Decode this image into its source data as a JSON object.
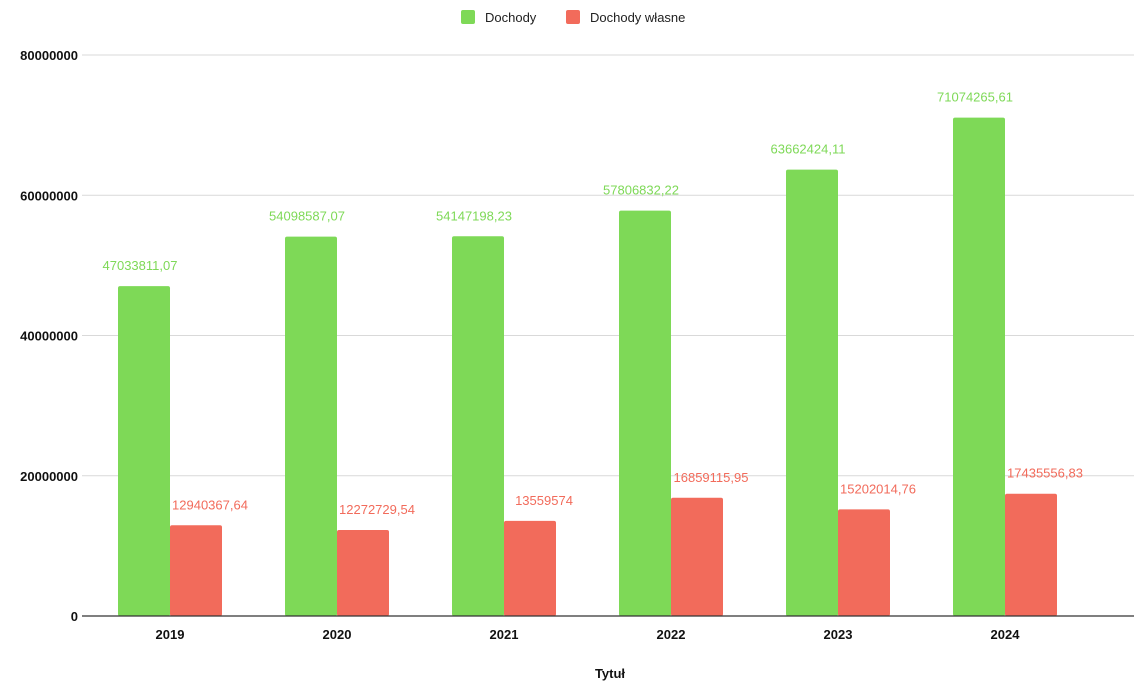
{
  "chart_data": {
    "type": "bar",
    "title": "",
    "xlabel": "Tytuł",
    "ylabel": "",
    "ylim": [
      0,
      80000000
    ],
    "yticks": [
      "0",
      "20000000",
      "40000000",
      "60000000",
      "80000000"
    ],
    "grid": true,
    "legend_position": "top-center",
    "categories": [
      "2019",
      "2020",
      "2021",
      "2022",
      "2023",
      "2024"
    ],
    "series": [
      {
        "name": "Dochody",
        "color": "#7ed957",
        "values": [
          47033811.07,
          54098587.07,
          54147198.23,
          57806832.22,
          63662424.11,
          71074265.61
        ],
        "labels": [
          "47033811,07",
          "54098587,07",
          "54147198,23",
          "57806832,22",
          "63662424,11",
          "71074265,61"
        ]
      },
      {
        "name": "Dochody własne",
        "color": "#f26b5b",
        "values": [
          12940367.64,
          12272729.54,
          13559574,
          16859115.95,
          15202014.76,
          17435556.83
        ],
        "labels": [
          "12940367,64",
          "12272729,54",
          "13559574",
          "16859115,95",
          "15202014,76",
          "17435556,83"
        ]
      }
    ]
  }
}
